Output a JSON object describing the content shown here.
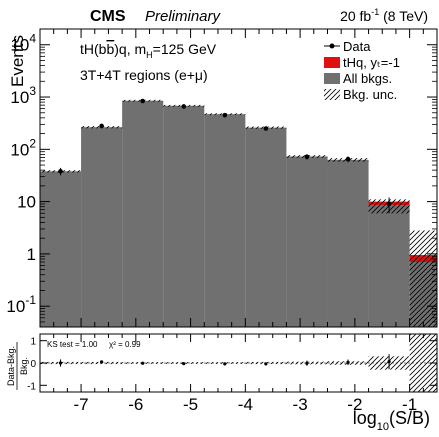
{
  "chart_data": {
    "type": "bar",
    "header": {
      "experiment": "CMS",
      "status": "Preliminary",
      "lumi": "20 fb",
      "lumi_exp": "-1",
      "energy": " (8 TeV)"
    },
    "annotations": {
      "line1_a": "tH(b",
      "line1_b": "b",
      "line1_c": ")q, m",
      "line1_sub": "H",
      "line1_d": "=125 GeV",
      "line2": "3T+4T regions (e+μ)"
    },
    "ylabel": "Events",
    "xlabel": "log",
    "xlabel_sub": "10",
    "xlabel_tail": "(S/B)",
    "ratio_ylabel_num": "Data-Bkg.",
    "ratio_ylabel_den": "Bkg.",
    "ratio_text_ks": "KS test = 1.00",
    "ratio_text_chi": "χ² = 0.99",
    "yscale": "log",
    "xlim": [
      -7.75,
      -0.5
    ],
    "ylim": [
      0.04,
      20000
    ],
    "ratio_ylim": [
      -1.3,
      1.3
    ],
    "ratio_yticks": [
      -1,
      0,
      1
    ],
    "yticks": [
      {
        "value": 0.1,
        "base": "10",
        "exp": "-1"
      },
      {
        "value": 1,
        "base": "1",
        "exp": ""
      },
      {
        "value": 10,
        "base": "10",
        "exp": ""
      },
      {
        "value": 100,
        "base": "10",
        "exp": "2"
      },
      {
        "value": 1000,
        "base": "10",
        "exp": "3"
      },
      {
        "value": 10000,
        "base": "10",
        "exp": "4"
      }
    ],
    "xticks": [
      -7,
      -6,
      -5,
      -4,
      -3,
      -2,
      -1
    ],
    "bin_edges": [
      -7.75,
      -7.0,
      -6.25,
      -5.5,
      -4.75,
      -4.0,
      -3.25,
      -2.5,
      -1.75,
      -1.0,
      -0.5
    ],
    "series": [
      {
        "name": "Data",
        "type": "points",
        "values": [
          38,
          280,
          840,
          660,
          450,
          250,
          72,
          65,
          9,
          null
        ]
      },
      {
        "name": "tHq, yₜ=-1",
        "type": "stacked",
        "values": [
          0.15,
          0.6,
          1.5,
          1.2,
          1.0,
          0.8,
          0.5,
          0.6,
          1.5,
          0.25
        ]
      },
      {
        "name": "All bkgs.",
        "type": "stacked",
        "values": [
          38,
          265,
          850,
          680,
          470,
          260,
          73,
          63,
          8.5,
          0.7
        ]
      },
      {
        "name": "Bkg. unc.",
        "type": "band",
        "values": [
          0.05,
          0.05,
          0.04,
          0.04,
          0.04,
          0.05,
          0.06,
          0.08,
          0.3,
          3.0
        ]
      }
    ],
    "ratio_values": [
      0.0,
      0.05,
      -0.01,
      -0.03,
      -0.04,
      -0.04,
      -0.01,
      0.03,
      0.06,
      null
    ],
    "colors": {
      "background": "#707070",
      "signal": "#e01010",
      "data": "#000000"
    },
    "legend_placement": "top-right",
    "grid": false
  }
}
